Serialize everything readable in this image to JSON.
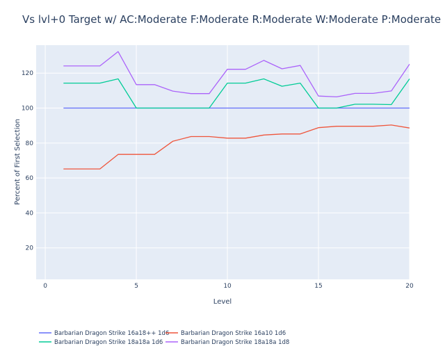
{
  "chart_data": {
    "type": "line",
    "title": "Vs lvl+0 Target w/ AC:Moderate F:Moderate R:Moderate W:Moderate P:Moderate",
    "xlabel": "Level",
    "ylabel": "Percent of First Selection",
    "xlim": [
      -0.5,
      20
    ],
    "ylim": [
      2,
      136
    ],
    "xticks": [
      0,
      5,
      10,
      15,
      20
    ],
    "yticks": [
      20,
      40,
      60,
      80,
      100,
      120
    ],
    "grid": true,
    "legend_position": "bottom",
    "x": [
      1,
      2,
      3,
      4,
      5,
      6,
      7,
      8,
      9,
      10,
      11,
      12,
      13,
      14,
      15,
      16,
      17,
      18,
      19,
      20
    ],
    "series": [
      {
        "name": "Barbarian Dragon Strike 16a18++ 1d6",
        "color": "#636efa",
        "values": [
          100,
          100,
          100,
          100,
          100,
          100,
          100,
          100,
          100,
          100,
          100,
          100,
          100,
          100,
          100,
          100,
          100,
          100,
          100,
          100
        ]
      },
      {
        "name": "Barbarian Dragon Strike 16a10 1d6",
        "color": "#ef553b",
        "values": [
          65.2,
          65.2,
          65.2,
          73.5,
          73.5,
          73.5,
          81,
          83.7,
          83.7,
          82.8,
          82.8,
          84.6,
          85.2,
          85.2,
          88.8,
          89.6,
          89.6,
          89.6,
          90.3,
          88.6
        ]
      },
      {
        "name": "Barbarian Dragon Strike 18a18a 1d6",
        "color": "#00cc96",
        "values": [
          114.3,
          114.3,
          114.3,
          116.7,
          100,
          100,
          100,
          100,
          100,
          114.3,
          114.3,
          116.7,
          112.5,
          114.3,
          100,
          100,
          102.2,
          102.2,
          102,
          116.7
        ]
      },
      {
        "name": "Barbarian Dragon Strike 18a18a 1d8",
        "color": "#ab63fa",
        "values": [
          124.1,
          124.1,
          124.1,
          132.3,
          113.4,
          113.4,
          109.7,
          108.3,
          108.3,
          122.2,
          122.2,
          127.3,
          122.5,
          124.4,
          106.9,
          106.4,
          108.4,
          108.4,
          109.8,
          125.1
        ]
      }
    ]
  }
}
